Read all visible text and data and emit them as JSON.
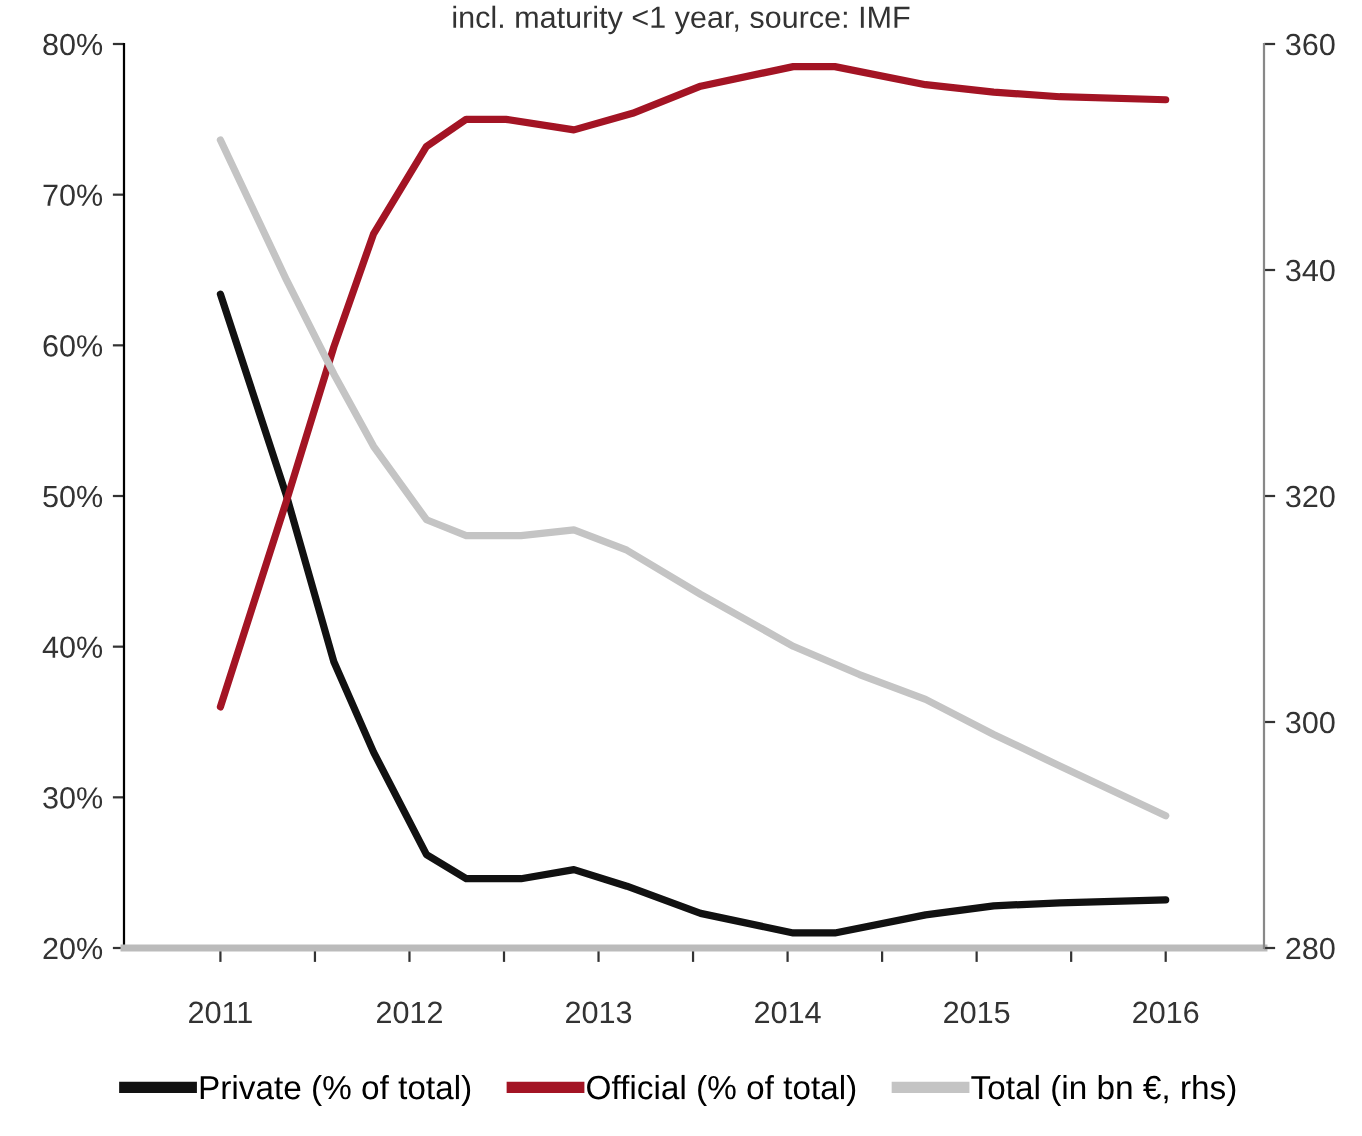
{
  "chart_data": {
    "type": "line",
    "title": "incl. maturity <1 year, source: IMF",
    "xlim": [
      2010.49,
      2016.52
    ],
    "xticks": [
      {
        "value": 2011,
        "label": "2011"
      },
      {
        "value": 2011.5,
        "label": null
      },
      {
        "value": 2012,
        "label": "2012"
      },
      {
        "value": 2012.5,
        "label": null
      },
      {
        "value": 2013,
        "label": "2013"
      },
      {
        "value": 2013.5,
        "label": null
      },
      {
        "value": 2014,
        "label": "2014"
      },
      {
        "value": 2014.5,
        "label": null
      },
      {
        "value": 2015,
        "label": "2015"
      },
      {
        "value": 2015.5,
        "label": null
      },
      {
        "value": 2016,
        "label": "2016"
      }
    ],
    "ylim": [
      20,
      80
    ],
    "yticks": [
      {
        "value": 20,
        "label": "20%"
      },
      {
        "value": 30,
        "label": "30%"
      },
      {
        "value": 40,
        "label": "40%"
      },
      {
        "value": 50,
        "label": "50%"
      },
      {
        "value": 60,
        "label": "60%"
      },
      {
        "value": 70,
        "label": "70%"
      },
      {
        "value": 80,
        "label": "80%"
      }
    ],
    "y2lim": [
      280,
      360
    ],
    "y2ticks": [
      280,
      300,
      320,
      340,
      360
    ],
    "legend": "bottom",
    "grid": false,
    "marker": "none",
    "line_style": "solid",
    "series": [
      {
        "name": "Private (% of total)",
        "color": "#111111",
        "x": [
          2011,
          2011.35,
          2011.6,
          2011.81,
          2012.09,
          2012.3,
          2012.59,
          2012.87,
          2013.15,
          2013.54,
          2014.03,
          2014.25,
          2014.73,
          2015.09,
          2015.44,
          2016
        ],
        "values": [
          63.4,
          50,
          39,
          33,
          26.2,
          24.6,
          24.6,
          25.2,
          24.1,
          22.3,
          21.0,
          21.0,
          22.2,
          22.8,
          23.0,
          23.2
        ]
      },
      {
        "name": "Official (% of total)",
        "color": "#a31424",
        "x": [
          2011,
          2011.35,
          2011.6,
          2011.81,
          2012.09,
          2012.3,
          2012.51,
          2012.87,
          2013.18,
          2013.54,
          2014.03,
          2014.25,
          2014.73,
          2015.09,
          2015.44,
          2016
        ],
        "values": [
          36.0,
          49.7,
          59.9,
          67.4,
          73.2,
          75.0,
          75.0,
          74.3,
          75.4,
          77.2,
          78.5,
          78.5,
          77.3,
          76.8,
          76.5,
          76.3
        ]
      },
      {
        "name": "Total (in bn €, rhs)",
        "color": "#c4c4c4",
        "axis": "y2",
        "x": [
          2011,
          2011.35,
          2011.6,
          2011.81,
          2012.09,
          2012.3,
          2012.59,
          2012.87,
          2013.15,
          2013.54,
          2014.03,
          2014.38,
          2014.73,
          2015.09,
          2015.44,
          2016
        ],
        "values": [
          351.5,
          339.1,
          330.8,
          324.4,
          317.9,
          316.5,
          316.5,
          317.0,
          315.2,
          311.3,
          306.7,
          304.2,
          302.0,
          298.9,
          296.1,
          291.7
        ]
      }
    ]
  }
}
